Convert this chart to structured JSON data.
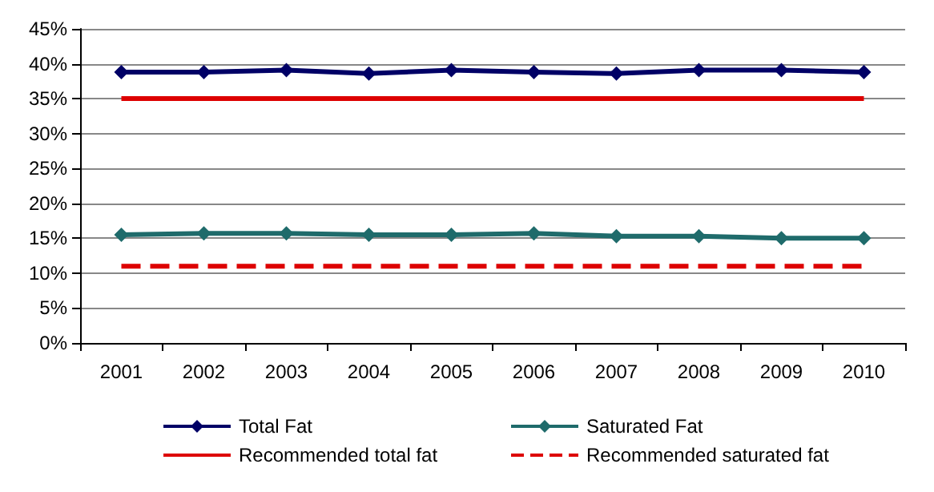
{
  "chart_data": {
    "type": "line",
    "categories": [
      "2001",
      "2002",
      "2003",
      "2004",
      "2005",
      "2006",
      "2007",
      "2008",
      "2009",
      "2010"
    ],
    "series": [
      {
        "name": "Total Fat",
        "color": "#000066",
        "marker": "diamond",
        "line_style": "solid",
        "values": [
          38.8,
          38.8,
          39.1,
          38.6,
          39.1,
          38.8,
          38.6,
          39.1,
          39.1,
          38.8
        ]
      },
      {
        "name": "Saturated Fat",
        "color": "#1f6b6b",
        "marker": "diamond",
        "line_style": "solid",
        "values": [
          15.5,
          15.7,
          15.7,
          15.5,
          15.5,
          15.7,
          15.3,
          15.3,
          15.0,
          15.0
        ]
      },
      {
        "name": "Recommended total fat",
        "color": "#dd0000",
        "marker": "none",
        "line_style": "solid",
        "values": [
          35,
          35,
          35,
          35,
          35,
          35,
          35,
          35,
          35,
          35
        ]
      },
      {
        "name": "Recommended saturated fat",
        "color": "#dd0000",
        "marker": "none",
        "line_style": "dashed",
        "values": [
          11,
          11,
          11,
          11,
          11,
          11,
          11,
          11,
          11,
          11
        ]
      }
    ],
    "ylim": [
      0,
      45
    ],
    "yticks": [
      {
        "value": 0,
        "label": "0%"
      },
      {
        "value": 5,
        "label": "5%"
      },
      {
        "value": 10,
        "label": "10%"
      },
      {
        "value": 15,
        "label": "15%"
      },
      {
        "value": 20,
        "label": "20%"
      },
      {
        "value": 25,
        "label": "25%"
      },
      {
        "value": 30,
        "label": "30%"
      },
      {
        "value": 35,
        "label": "35%"
      },
      {
        "value": 40,
        "label": "40%"
      },
      {
        "value": 45,
        "label": "45%"
      }
    ],
    "grid": "y",
    "legend": "bottom"
  }
}
